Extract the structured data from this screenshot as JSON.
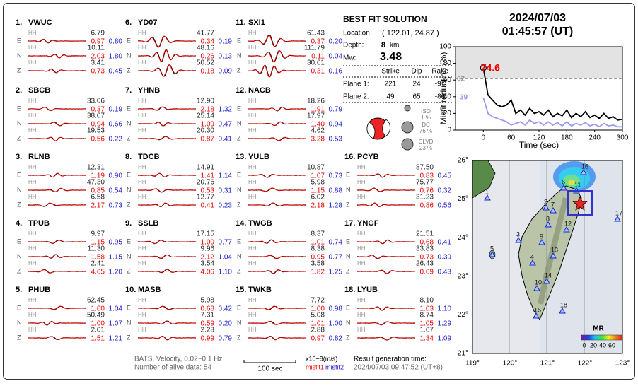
{
  "channel": "HH",
  "components": [
    "E",
    "N",
    "Z"
  ],
  "stations": [
    {
      "number": "1.",
      "name": "VWUC",
      "traces": [
        {
          "amp": "6.79",
          "misfit1": "0.97",
          "misfit2": "0.80"
        },
        {
          "amp": "10.11",
          "misfit1": "2.03",
          "misfit2": "1.80"
        },
        {
          "amp": "3.41",
          "misfit1": "0.73",
          "misfit2": "0.45"
        }
      ]
    },
    {
      "number": "2.",
      "name": "SBCB",
      "traces": [
        {
          "amp": "33.06",
          "misfit1": "0.37",
          "misfit2": "0.19"
        },
        {
          "amp": "38.07",
          "misfit1": "0.94",
          "misfit2": "0.66"
        },
        {
          "amp": "19.53",
          "misfit1": "0.56",
          "misfit2": "0.22"
        }
      ]
    },
    {
      "number": "3.",
      "name": "RLNB",
      "traces": [
        {
          "amp": "12.31",
          "misfit1": "1.19",
          "misfit2": "0.90"
        },
        {
          "amp": "47.30",
          "misfit1": "0.85",
          "misfit2": "0.54"
        },
        {
          "amp": "6.58",
          "misfit1": "2.17",
          "misfit2": "0.73"
        }
      ]
    },
    {
      "number": "4.",
      "name": "TPUB",
      "traces": [
        {
          "amp": "9.97",
          "misfit1": "1.15",
          "misfit2": "0.95"
        },
        {
          "amp": "11.30",
          "misfit1": "1.58",
          "misfit2": "1.15"
        },
        {
          "amp": "2.41",
          "misfit1": "4.65",
          "misfit2": "1.20"
        }
      ]
    },
    {
      "number": "5.",
      "name": "PHUB",
      "traces": [
        {
          "amp": "62.45",
          "misfit1": "1.00",
          "misfit2": "1.04"
        },
        {
          "amp": "50.49",
          "misfit1": "1.00",
          "misfit2": "1.07"
        },
        {
          "amp": "2.01",
          "misfit1": "1.51",
          "misfit2": "1.21"
        }
      ]
    },
    {
      "number": "6.",
      "name": "YD07",
      "traces": [
        {
          "amp": "41.77",
          "misfit1": "0.34",
          "misfit2": "0.19"
        },
        {
          "amp": "48.16",
          "misfit1": "0.26",
          "misfit2": "0.13"
        },
        {
          "amp": "50.52",
          "misfit1": "0.18",
          "misfit2": "0.09"
        }
      ]
    },
    {
      "number": "7.",
      "name": "YHNB",
      "traces": [
        {
          "amp": "12.90",
          "misfit1": "2.18",
          "misfit2": "1.32"
        },
        {
          "amp": "25.14",
          "misfit1": "1.09",
          "misfit2": "0.47"
        },
        {
          "amp": "20.30",
          "misfit1": "0.87",
          "misfit2": "0.41"
        }
      ]
    },
    {
      "number": "8.",
      "name": "TDCB",
      "traces": [
        {
          "amp": "14.91",
          "misfit1": "1.41",
          "misfit2": "1.14"
        },
        {
          "amp": "20.76",
          "misfit1": "0.53",
          "misfit2": "0.31"
        },
        {
          "amp": "12.77",
          "misfit1": "0.41",
          "misfit2": "0.23"
        }
      ]
    },
    {
      "number": "9.",
      "name": "SSLB",
      "traces": [
        {
          "amp": "17.15",
          "misfit1": "1.00",
          "misfit2": "0.77"
        },
        {
          "amp": "9.96",
          "misfit1": "2.12",
          "misfit2": "1.04"
        },
        {
          "amp": "3.54",
          "misfit1": "4.06",
          "misfit2": "1.10"
        }
      ]
    },
    {
      "number": "10.",
      "name": "MASB",
      "traces": [
        {
          "amp": "5.98",
          "misfit1": "0.68",
          "misfit2": "0.42"
        },
        {
          "amp": "7.31",
          "misfit1": "0.59",
          "misfit2": "0.20"
        },
        {
          "amp": "2.28",
          "misfit1": "0.99",
          "misfit2": "0.79"
        }
      ]
    },
    {
      "number": "11.",
      "name": "SXI1",
      "traces": [
        {
          "amp": "61.43",
          "misfit1": "0.37",
          "misfit2": "0.20"
        },
        {
          "amp": "111.79",
          "misfit1": "0.11",
          "misfit2": "0.04"
        },
        {
          "amp": "30.61",
          "misfit1": "0.31",
          "misfit2": "0.16"
        }
      ]
    },
    {
      "number": "12.",
      "name": "NACB",
      "traces": [
        {
          "amp": "18.26",
          "misfit1": "1.91",
          "misfit2": "0.79"
        },
        {
          "amp": "17.97",
          "misfit1": "1.40",
          "misfit2": "0.94"
        },
        {
          "amp": "4.62",
          "misfit1": "3.28",
          "misfit2": "0.53"
        }
      ]
    },
    {
      "number": "13.",
      "name": "YULB",
      "traces": [
        {
          "amp": "10.87",
          "misfit1": "1.07",
          "misfit2": "0.73"
        },
        {
          "amp": "5.98",
          "misfit1": "1.15",
          "misfit2": "0.88"
        },
        {
          "amp": "6.02",
          "misfit1": "2.18",
          "misfit2": "1.28"
        }
      ]
    },
    {
      "number": "14.",
      "name": "TWGB",
      "traces": [
        {
          "amp": "8.37",
          "misfit1": "1.01",
          "misfit2": "0.74"
        },
        {
          "amp": "8.38",
          "misfit1": "0.95",
          "misfit2": "0.77"
        },
        {
          "amp": "3.58",
          "misfit1": "1.82",
          "misfit2": "1.25"
        }
      ]
    },
    {
      "number": "15.",
      "name": "TWKB",
      "traces": [
        {
          "amp": "7.72",
          "misfit1": "1.00",
          "misfit2": "0.98"
        },
        {
          "amp": "5.08",
          "misfit1": "1.01",
          "misfit2": "1.00"
        },
        {
          "amp": "2.88",
          "misfit1": "0.97",
          "misfit2": "0.82"
        }
      ]
    },
    {
      "number": "16.",
      "name": "PCYB",
      "traces": [
        {
          "amp": "87.50",
          "misfit1": "0.83",
          "misfit2": "0.45"
        },
        {
          "amp": "75.77",
          "misfit1": "0.76",
          "misfit2": "0.32"
        },
        {
          "amp": "31.23",
          "misfit1": "0.86",
          "misfit2": "0.56"
        }
      ]
    },
    {
      "number": "17.",
      "name": "YNGF",
      "traces": [
        {
          "amp": "21.51",
          "misfit1": "0.68",
          "misfit2": "0.41"
        },
        {
          "amp": "33.83",
          "misfit1": "0.73",
          "misfit2": "0.39"
        },
        {
          "amp": "26.43",
          "misfit1": "0.69",
          "misfit2": "0.43"
        }
      ]
    },
    {
      "number": "18.",
      "name": "LYUB",
      "traces": [
        {
          "amp": "8.10",
          "misfit1": "1.03",
          "misfit2": "1.10"
        },
        {
          "amp": "8.74",
          "misfit1": "1.05",
          "misfit2": "1.29"
        },
        {
          "amp": "1.67",
          "misfit1": "1.34",
          "misfit2": "1.09"
        }
      ]
    }
  ],
  "solution": {
    "title": "BEST FIT SOLUTION",
    "location_label": "Location",
    "location": "( 122.01, 24.87 )",
    "depth_label": "Depth:",
    "depth": "8",
    "depth_unit": "km",
    "mw_label": "Mw:",
    "mw": "3.48",
    "columns": [
      "Strike",
      "Dip",
      "Rake"
    ],
    "planes": [
      {
        "label": "Plane 1:",
        "values": [
          221,
          24,
          -97
        ]
      },
      {
        "label": "Plane 2:",
        "values": [
          49,
          65,
          -86
        ]
      }
    ],
    "components": [
      {
        "name": "ISO",
        "percent": "1 %"
      },
      {
        "name": "DC",
        "percent": "76 %"
      },
      {
        "name": "CLVD",
        "percent": "23 %"
      }
    ]
  },
  "header": {
    "date": "2024/07/03",
    "time": "01:45:57  (UT)"
  },
  "chart_data": {
    "type": "line",
    "xlabel": "Time (sec)",
    "ylabel": "Misfit reduction (%)",
    "x": [
      0,
      10,
      20,
      30,
      40,
      50,
      60,
      70,
      80,
      90,
      100,
      110,
      120,
      130,
      140,
      150,
      160,
      170,
      180,
      190,
      200,
      210,
      220,
      230,
      240,
      250,
      260,
      270,
      280,
      290,
      300
    ],
    "series": [
      {
        "color": "#000000",
        "values": [
          74.6,
          42,
          36,
          30,
          28,
          30,
          36,
          20,
          24,
          18,
          26,
          20,
          22,
          18,
          24,
          16,
          20,
          17,
          24,
          15,
          20,
          16,
          22,
          15,
          18,
          14,
          20,
          14,
          16,
          12,
          13
        ]
      },
      {
        "color": "#9a9af0",
        "values": [
          39,
          20,
          16,
          14,
          12,
          10,
          6,
          8,
          10,
          6,
          12,
          8,
          10,
          6,
          10,
          6,
          9,
          5,
          10,
          5,
          8,
          6,
          9,
          5,
          7,
          4,
          8,
          5,
          6,
          4,
          4
        ]
      }
    ],
    "reference_line": 62,
    "xlim": [
      -60,
      300
    ],
    "ylim": [
      0,
      100
    ],
    "xticks": [
      0,
      60,
      120,
      180,
      240,
      300
    ],
    "yticks": [
      0,
      20,
      40,
      60,
      80,
      100
    ]
  },
  "map": {
    "lon_ticks": [
      "119°",
      "120°",
      "121°",
      "122°",
      "123°"
    ],
    "lat_ticks": [
      "21°",
      "22°",
      "23°",
      "24°",
      "25°",
      "26°"
    ],
    "station_labels": [
      "1",
      "2",
      "3",
      "4",
      "5",
      "6",
      "7",
      "8",
      "9",
      "10",
      "11",
      "12",
      "13",
      "14",
      "15",
      "16",
      "17",
      "18"
    ],
    "colorbar": {
      "title": "MR",
      "ticks": [
        0,
        20,
        40,
        60
      ]
    }
  },
  "footer": {
    "source": "BATS, Velocity, 0.02~0.1 Hz",
    "alive": "Number of alive data: 54",
    "scale": "100 sec",
    "unit": "x10−8(m/s)",
    "misfit1": "misfit1",
    "misfit2": "misfit2",
    "result_label": "Result generation time:",
    "result_time": "2024/07/03 09:47:52 (UT+8)"
  }
}
